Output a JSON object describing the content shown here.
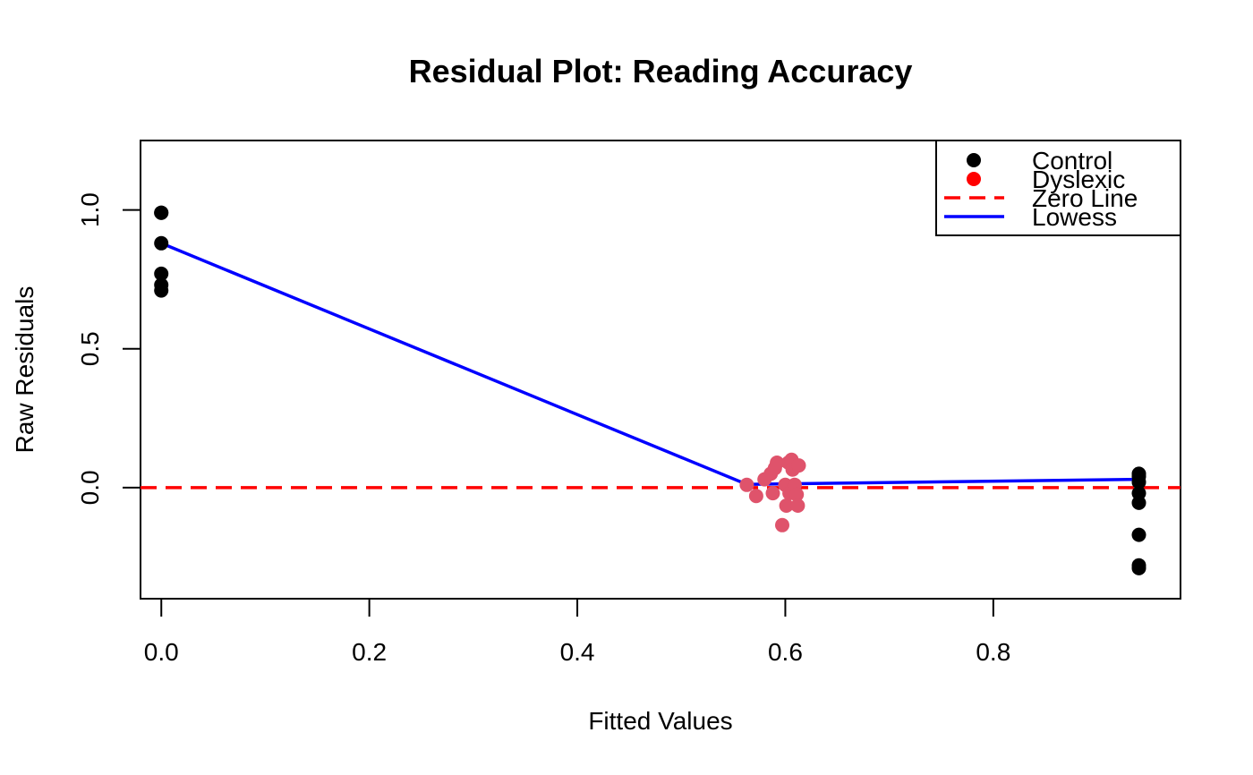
{
  "chart_data": {
    "type": "scatter",
    "title": "Residual Plot: Reading Accuracy",
    "xlabel": "Fitted Values",
    "ylabel": "Raw Residuals",
    "xlim": [
      -0.02,
      0.98
    ],
    "ylim": [
      -0.4,
      1.25
    ],
    "x_ticks": [
      0.0,
      0.2,
      0.4,
      0.6,
      0.8
    ],
    "x_tick_labels": [
      "0.0",
      "0.2",
      "0.4",
      "0.6",
      "0.8"
    ],
    "y_ticks": [
      0.0,
      0.5,
      1.0
    ],
    "y_tick_labels": [
      "0.0",
      "0.5",
      "1.0"
    ],
    "grid": false,
    "legend_position": "top-right",
    "legend": [
      {
        "label": "Control",
        "type": "point",
        "color": "#000000"
      },
      {
        "label": "Dyslexic",
        "type": "point",
        "color": "#ff0000"
      },
      {
        "label": "Zero Line",
        "type": "dashed-line",
        "color": "#ff0000"
      },
      {
        "label": "Lowess",
        "type": "line",
        "color": "#0000ff"
      }
    ],
    "series": [
      {
        "name": "Control",
        "color": "#000000",
        "points": [
          [
            0.0,
            0.99
          ],
          [
            0.0,
            0.99
          ],
          [
            0.0,
            0.88
          ],
          [
            0.0,
            0.77
          ],
          [
            0.0,
            0.73
          ],
          [
            0.0,
            0.71
          ],
          [
            0.94,
            0.05
          ],
          [
            0.94,
            0.04
          ],
          [
            0.94,
            0.02
          ],
          [
            0.94,
            -0.02
          ],
          [
            0.94,
            -0.055
          ],
          [
            0.94,
            -0.17
          ],
          [
            0.94,
            -0.28
          ],
          [
            0.94,
            -0.29
          ]
        ]
      },
      {
        "name": "Dyslexic",
        "color": "#df536b",
        "points": [
          [
            0.563,
            0.01
          ],
          [
            0.572,
            -0.03
          ],
          [
            0.58,
            0.03
          ],
          [
            0.586,
            0.05
          ],
          [
            0.588,
            -0.02
          ],
          [
            0.59,
            0.07
          ],
          [
            0.592,
            0.09
          ],
          [
            0.597,
            -0.135
          ],
          [
            0.6,
            0.01
          ],
          [
            0.601,
            -0.065
          ],
          [
            0.603,
            0.09
          ],
          [
            0.604,
            -0.02
          ],
          [
            0.606,
            0.1
          ],
          [
            0.607,
            0.065
          ],
          [
            0.609,
            0.01
          ],
          [
            0.611,
            -0.025
          ],
          [
            0.612,
            -0.065
          ],
          [
            0.613,
            0.08
          ]
        ]
      },
      {
        "name": "Zero Line",
        "type": "hline",
        "y": 0,
        "color": "#ff0000",
        "dash": true
      },
      {
        "name": "Lowess",
        "type": "line",
        "color": "#0000ff",
        "points": [
          [
            0.0,
            0.88
          ],
          [
            0.563,
            0.012
          ],
          [
            0.94,
            0.03
          ]
        ]
      }
    ]
  }
}
